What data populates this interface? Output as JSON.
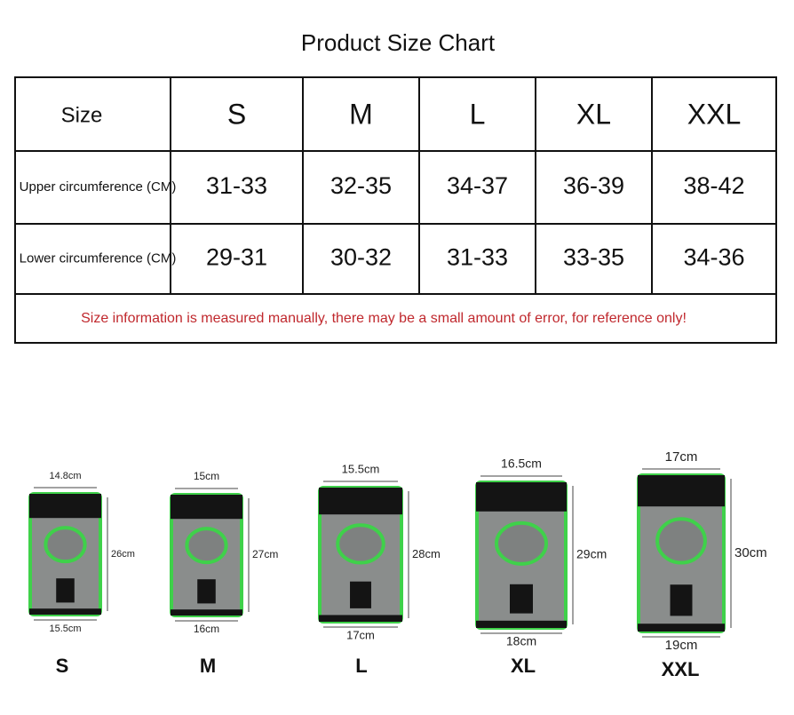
{
  "title": "Product Size Chart",
  "table": {
    "header": [
      "Size",
      "S",
      "M",
      "L",
      "XL",
      "XXL"
    ],
    "rows": [
      [
        "Upper circumference (CM)",
        "31-33",
        "32-35",
        "34-37",
        "36-39",
        "38-42"
      ],
      [
        "Lower circumference (CM)",
        "29-31",
        "30-32",
        "31-33",
        "33-35",
        "34-36"
      ]
    ],
    "note": "Size information is measured manually, there may be a small amount of error, for reference only!"
  },
  "products": [
    {
      "size": "S",
      "top": "14.8cm",
      "height": "26cm",
      "bottom": "15.5cm"
    },
    {
      "size": "M",
      "top": "15cm",
      "height": "27cm",
      "bottom": "16cm"
    },
    {
      "size": "L",
      "top": "15.5cm",
      "height": "28cm",
      "bottom": "17cm"
    },
    {
      "size": "XL",
      "top": "16.5cm",
      "height": "29cm",
      "bottom": "18cm"
    },
    {
      "size": "XXL",
      "top": "17cm",
      "height": "30cm",
      "bottom": "19cm"
    }
  ]
}
